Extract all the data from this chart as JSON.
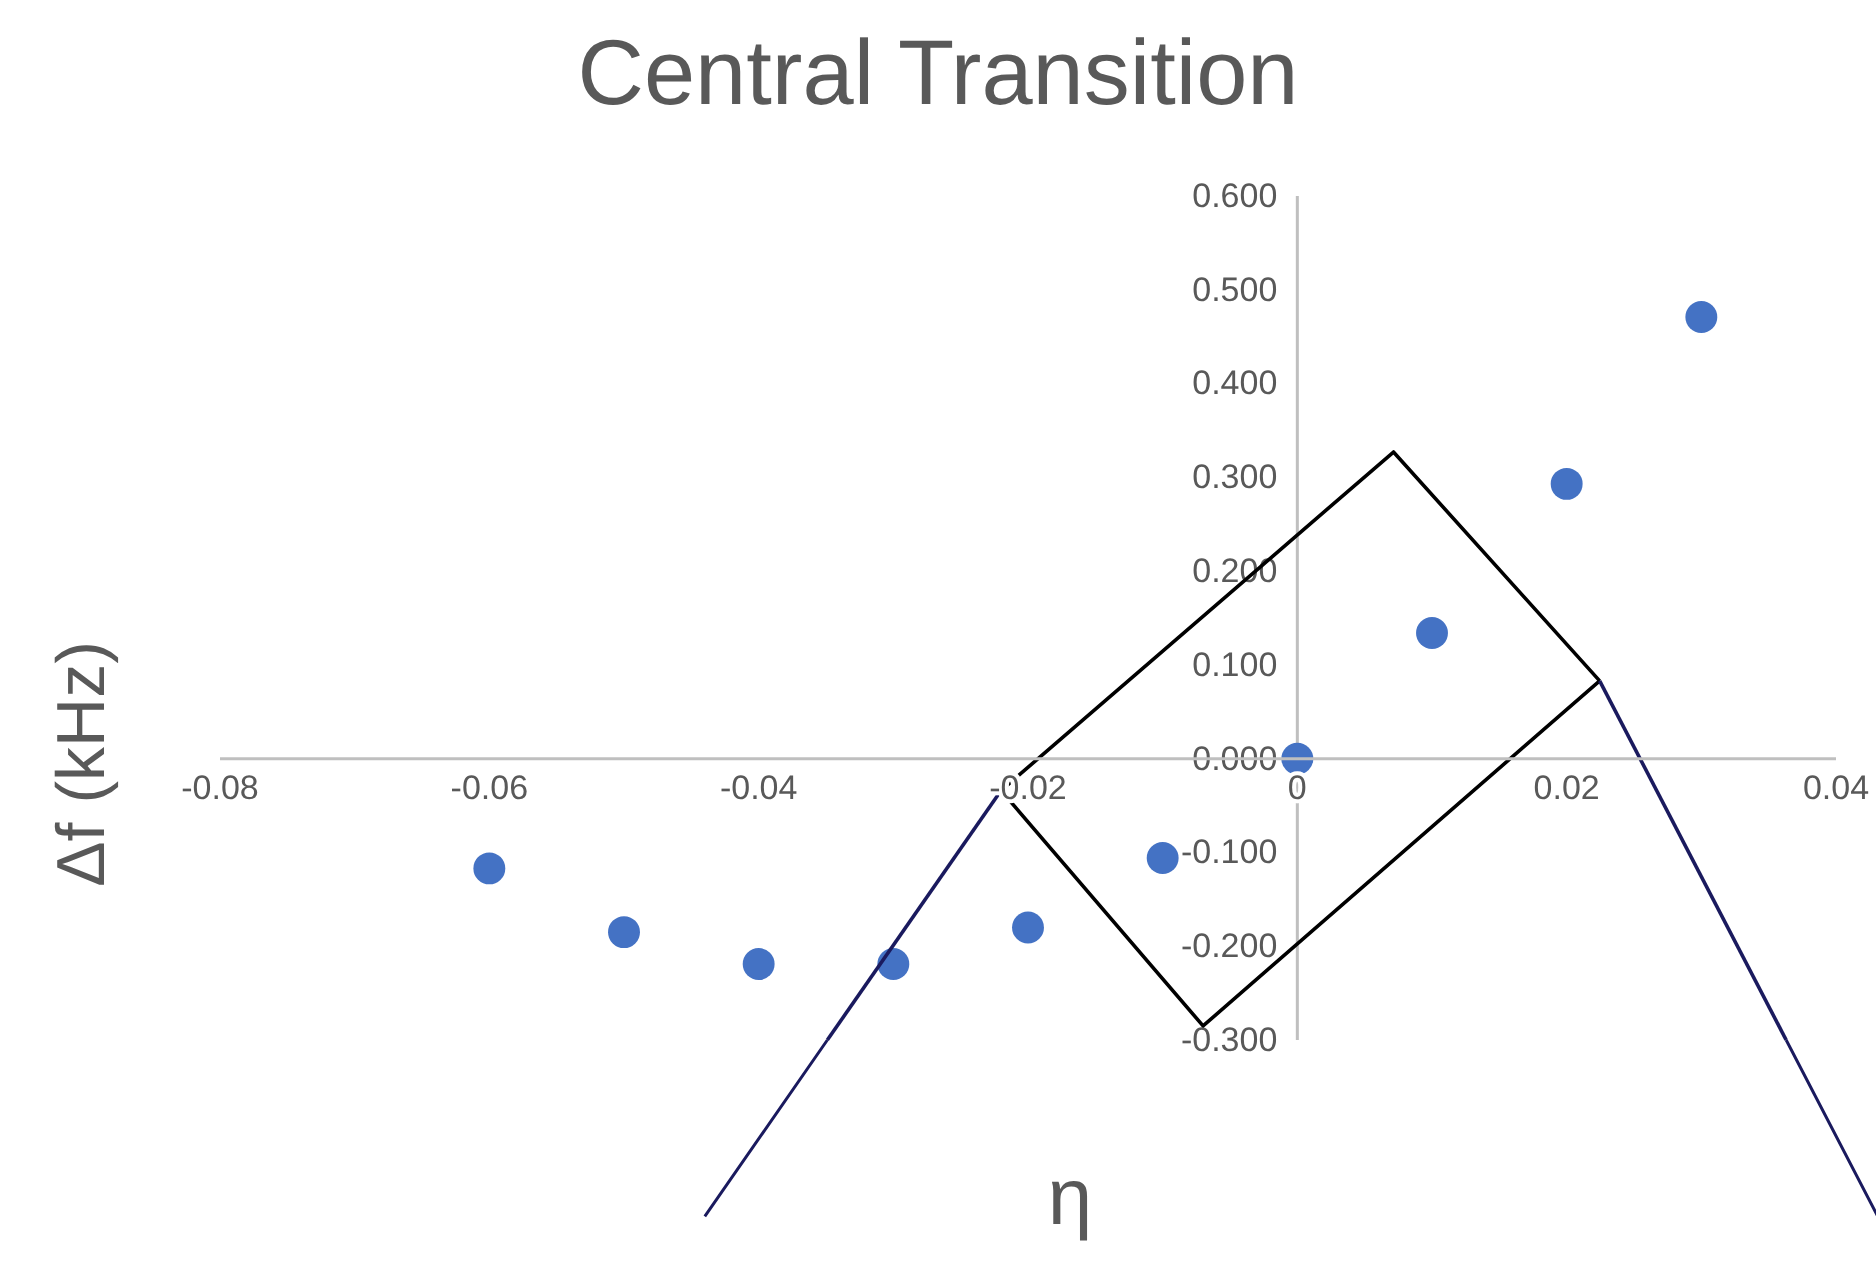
{
  "chart_data": {
    "type": "scatter",
    "title": "Central Transition",
    "xlabel": "η",
    "ylabel": "Δf (kHz)",
    "x": [
      -0.06,
      -0.05,
      -0.04,
      -0.03,
      -0.02,
      -0.01,
      0,
      0.01,
      0.02,
      0.03
    ],
    "series": [
      {
        "color": "#4472c4",
        "marker": "circle",
        "values": [
          -0.117,
          -0.185,
          -0.219,
          -0.219,
          -0.18,
          -0.106,
          0,
          0.134,
          0.293,
          0.471
        ]
      },
      {
        "type": "line",
        "marker": "none",
        "color": "#1a1a5e",
        "x": [
          -0.0349,
          -0.022
        ],
        "values": [
          -0.3,
          -0.034
        ]
      },
      {
        "type": "line",
        "marker": "none",
        "color": "#000000",
        "x": [
          -0.022,
          0.00714,
          0.02245
        ],
        "values": [
          -0.034,
          0.327,
          0.083
        ]
      },
      {
        "type": "line",
        "marker": "none",
        "color": "#000000",
        "x": [
          -0.022,
          -0.007,
          0.02245
        ],
        "values": [
          -0.034,
          -0.285,
          0.083
        ]
      },
      {
        "type": "line",
        "marker": "none",
        "color": "#1a1a5e",
        "x": [
          0.02245,
          0.0363
        ],
        "values": [
          0.083,
          -0.3
        ]
      }
    ],
    "xlim": [
      -0.08,
      0.04
    ],
    "xticks": [
      -0.08,
      -0.06,
      -0.04,
      -0.02,
      0,
      0.02,
      0.04
    ],
    "ylim": [
      -0.3,
      0.6
    ],
    "yticks": [
      {
        "value": -0.3,
        "label": "-0.300"
      },
      {
        "value": -0.2,
        "label": "-0.200"
      },
      {
        "value": -0.1,
        "label": "-0.100"
      },
      {
        "value": 0,
        "label": "0.000"
      },
      {
        "value": 0.1,
        "label": "0.100"
      },
      {
        "value": 0.2,
        "label": "0.200"
      },
      {
        "value": 0.3,
        "label": "0.300"
      },
      {
        "value": 0.4,
        "label": "0.400"
      },
      {
        "value": 0.5,
        "label": "0.500"
      },
      {
        "value": 0.6,
        "label": "0.600"
      }
    ]
  }
}
